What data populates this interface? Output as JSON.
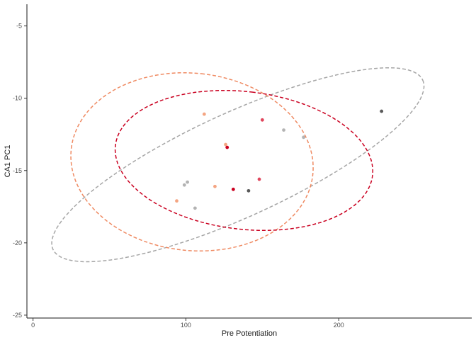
{
  "chart_data": {
    "type": "scatter",
    "title": "",
    "xlabel": "Pre Potentiation",
    "ylabel": "CA1 PC1",
    "xlim": [
      -4,
      287
    ],
    "ylim": [
      -25.2,
      -3.5
    ],
    "x_ticks": [
      0,
      100,
      200
    ],
    "y_ticks": [
      -5,
      -10,
      -15,
      -20,
      -25
    ],
    "grid": false,
    "legend": "none",
    "series": [
      {
        "color": "#808080",
        "ellipse_color": "#a6a6a6",
        "ellipse": {
          "cx": 134,
          "cy": -14.6,
          "a": 133,
          "b": 3.6,
          "angle_deg": 24.6
        },
        "points": [
          {
            "x": 141,
            "y": -16.4,
            "color": "#595959"
          },
          {
            "x": 228,
            "y": -10.9,
            "color": "#595959"
          },
          {
            "x": 99,
            "y": -16.0,
            "color": "#b3b3b3"
          },
          {
            "x": 101,
            "y": -15.8,
            "color": "#b3b3b3"
          },
          {
            "x": 106,
            "y": -17.6,
            "color": "#b3b3b3"
          },
          {
            "x": 164,
            "y": -12.2,
            "color": "#b3b3b3"
          },
          {
            "x": 177,
            "y": -12.7,
            "color": "#b3b3b3"
          }
        ]
      },
      {
        "color": "#f4a582",
        "ellipse_color": "#ef8a62",
        "ellipse": {
          "cx": 104,
          "cy": -14.4,
          "a": 58,
          "b": 8.4,
          "angle_deg": 84
        },
        "points": [
          {
            "x": 112,
            "y": -11.1,
            "color": "#f4a582"
          },
          {
            "x": 119,
            "y": -16.1,
            "color": "#f4a582"
          },
          {
            "x": 126,
            "y": -13.2,
            "color": "#f4a582"
          },
          {
            "x": 94,
            "y": -17.1,
            "color": "#f4a582"
          }
        ]
      },
      {
        "color": "#ca0020",
        "ellipse_color": "#ca0020",
        "ellipse": {
          "cx": 138,
          "cy": -14.3,
          "a": 45,
          "b": 8.95,
          "angle_deg": 83.3
        },
        "points": [
          {
            "x": 150,
            "y": -11.5,
            "color": "#e0455c"
          },
          {
            "x": 127,
            "y": -13.4,
            "color": "#ca0020"
          },
          {
            "x": 131,
            "y": -16.3,
            "color": "#ca0020"
          },
          {
            "x": 148,
            "y": -15.6,
            "color": "#e0455c"
          }
        ]
      }
    ]
  }
}
